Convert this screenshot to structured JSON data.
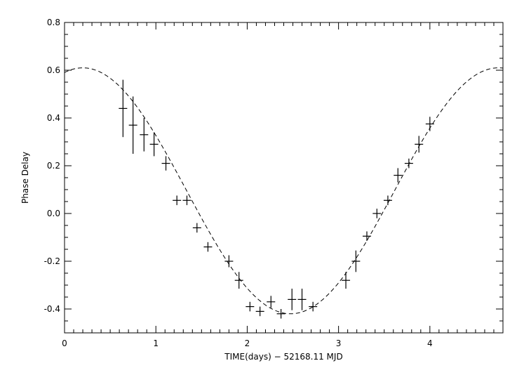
{
  "chart_data": {
    "type": "scatter",
    "title": "",
    "xlabel": "TIME(days) − 52168.11 MJD",
    "ylabel": "Phase Delay",
    "xlim": [
      0,
      4.8
    ],
    "ylim": [
      -0.5,
      0.8
    ],
    "x_ticks": [
      0,
      1,
      2,
      3,
      4
    ],
    "x_tick_labels": [
      "0",
      "1",
      "2",
      "3",
      "4"
    ],
    "x_minor_step": 0.1,
    "y_ticks": [
      -0.4,
      -0.2,
      0.0,
      0.2,
      0.4,
      0.6,
      0.8
    ],
    "y_tick_labels": [
      "-0.4",
      "-0.2",
      "0.0",
      "0.2",
      "0.4",
      "0.6",
      "0.8"
    ],
    "y_minor_step": 0.05,
    "grid": false,
    "series": [
      {
        "marker": "cross-with-errorbars",
        "points": [
          {
            "x": 0.64,
            "y": 0.44,
            "yerr": 0.12
          },
          {
            "x": 0.75,
            "y": 0.37,
            "yerr": 0.12
          },
          {
            "x": 0.87,
            "y": 0.33,
            "yerr": 0.07
          },
          {
            "x": 0.98,
            "y": 0.29,
            "yerr": 0.05
          },
          {
            "x": 1.11,
            "y": 0.21,
            "yerr": 0.03
          },
          {
            "x": 1.23,
            "y": 0.055,
            "yerr": 0.02
          },
          {
            "x": 1.34,
            "y": 0.055,
            "yerr": 0.02
          },
          {
            "x": 1.45,
            "y": -0.06,
            "yerr": 0.02
          },
          {
            "x": 1.57,
            "y": -0.14,
            "yerr": 0.02
          },
          {
            "x": 1.8,
            "y": -0.2,
            "yerr": 0.025
          },
          {
            "x": 1.91,
            "y": -0.28,
            "yerr": 0.035
          },
          {
            "x": 2.03,
            "y": -0.39,
            "yerr": 0.02
          },
          {
            "x": 2.14,
            "y": -0.41,
            "yerr": 0.02
          },
          {
            "x": 2.26,
            "y": -0.37,
            "yerr": 0.025
          },
          {
            "x": 2.37,
            "y": -0.42,
            "yerr": 0.02
          },
          {
            "x": 2.49,
            "y": -0.36,
            "yerr": 0.045
          },
          {
            "x": 2.6,
            "y": -0.36,
            "yerr": 0.045
          },
          {
            "x": 2.72,
            "y": -0.39,
            "yerr": 0.02
          },
          {
            "x": 3.08,
            "y": -0.28,
            "yerr": 0.035
          },
          {
            "x": 3.19,
            "y": -0.2,
            "yerr": 0.045
          },
          {
            "x": 3.31,
            "y": -0.095,
            "yerr": 0.02
          },
          {
            "x": 3.42,
            "y": 0.0,
            "yerr": 0.02
          },
          {
            "x": 3.54,
            "y": 0.055,
            "yerr": 0.02
          },
          {
            "x": 3.65,
            "y": 0.16,
            "yerr": 0.03
          },
          {
            "x": 3.77,
            "y": 0.21,
            "yerr": 0.02
          },
          {
            "x": 3.88,
            "y": 0.29,
            "yerr": 0.035
          },
          {
            "x": 4.0,
            "y": 0.375,
            "yerr": 0.03
          }
        ]
      },
      {
        "line": "dashed",
        "model": "sinusoid",
        "mean": 0.095,
        "amplitude": 0.515,
        "period_days": 4.55,
        "peak_x": 0.2
      }
    ]
  }
}
